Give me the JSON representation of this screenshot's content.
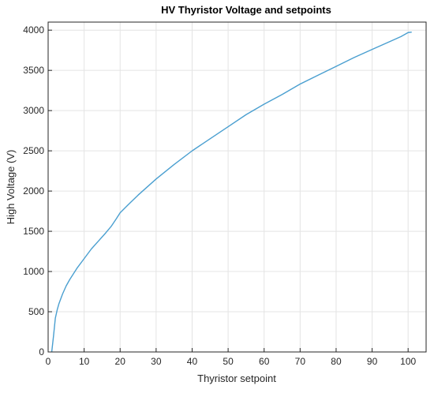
{
  "chart_data": {
    "type": "line",
    "title": "HV Thyristor Voltage and setpoints",
    "xlabel": "Thyristor setpoint",
    "ylabel": "High Voltage (V)",
    "xlim": [
      0,
      105
    ],
    "ylim": [
      0,
      4100
    ],
    "grid": true,
    "legend": "none",
    "x_ticks": [
      0,
      10,
      20,
      30,
      40,
      50,
      60,
      70,
      80,
      90,
      100
    ],
    "y_ticks": [
      0,
      500,
      1000,
      1500,
      2000,
      2500,
      3000,
      3500,
      4000
    ],
    "series": [
      {
        "color": "#4a9fd0",
        "x": [
          1,
          1.5,
          2,
          2.5,
          3,
          4,
          5,
          6,
          7,
          8,
          10,
          12,
          14,
          16,
          17.5,
          19,
          20,
          22,
          25,
          30,
          35,
          40,
          45,
          50,
          55,
          60,
          65,
          70,
          75,
          80,
          85,
          90,
          95,
          98,
          100,
          101
        ],
        "y": [
          0,
          200,
          420,
          520,
          600,
          720,
          820,
          900,
          970,
          1040,
          1160,
          1280,
          1380,
          1480,
          1560,
          1660,
          1730,
          1820,
          1950,
          2150,
          2330,
          2500,
          2650,
          2800,
          2950,
          3080,
          3200,
          3330,
          3440,
          3550,
          3660,
          3760,
          3860,
          3920,
          3970,
          3975
        ]
      }
    ]
  }
}
